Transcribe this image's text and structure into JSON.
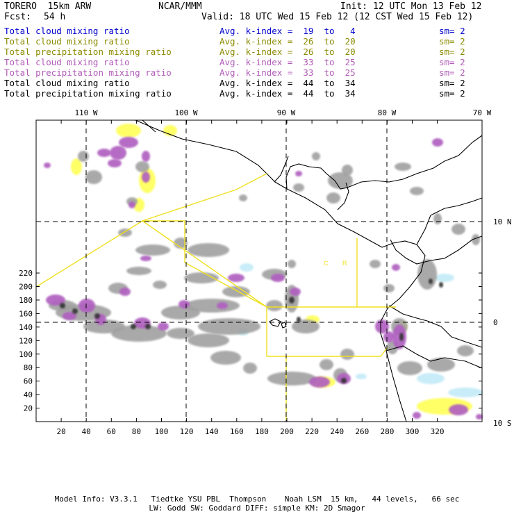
{
  "header": {
    "model": "TORERO  15km ARW",
    "center": "NCAR/MMM",
    "init": "Init: 12 UTC Mon 13 Feb 12",
    "fcst_label": "Fcst:",
    "fcst_value": "54 h",
    "valid": "Valid: 18 UTC Wed 15 Feb 12 (12 CST Wed 15 Feb 12)"
  },
  "legend": [
    {
      "field": "Total cloud mixing ratio",
      "index": "Avg. k-index =  19  to   4",
      "sm": "sm= 2",
      "color": "#0000cc"
    },
    {
      "field": "Total cloud mixing ratio",
      "index": "Avg. k-index =  26  to  20",
      "sm": "sm= 2",
      "color": "#8a8a00"
    },
    {
      "field": "Total precipitation mixing ratio",
      "index": "Avg. k-index =  26  to  20",
      "sm": "sm= 2",
      "color": "#8a8a00"
    },
    {
      "field": "Total cloud mixing ratio",
      "index": "Avg. k-index =  33  to  25",
      "sm": "sm= 2",
      "color": "#b05ab8"
    },
    {
      "field": "Total precipitation mixing ratio",
      "index": "Avg. k-index =  33  to  25",
      "sm": "sm= 2",
      "color": "#b05ab8"
    },
    {
      "field": "Total cloud mixing ratio",
      "index": "Avg. k-index =  44  to  34",
      "sm": "sm= 2",
      "color": "#000000"
    },
    {
      "field": "Total precipitation mixing ratio",
      "index": "Avg. k-index =  44  to  34",
      "sm": "sm= 2",
      "color": "#000000"
    }
  ],
  "map": {
    "top_longitude_labels": [
      "110 W",
      "100 W",
      "90 W",
      "80 W",
      "70 W"
    ],
    "right_latitude_labels": [
      "10 N",
      "0",
      "10 S"
    ],
    "x_grid_labels": [
      "20",
      "40",
      "60",
      "80",
      "100",
      "120",
      "140",
      "160",
      "180",
      "200",
      "220",
      "240",
      "260",
      "280",
      "300",
      "320"
    ],
    "y_grid_labels": [
      "20",
      "40",
      "60",
      "80",
      "100",
      "120",
      "140",
      "160",
      "180",
      "200",
      "220"
    ],
    "colors": {
      "frame": "#000000",
      "cloud_light_blue": "#c8ecf8",
      "cloud_yellow": "#ffff66",
      "cloud_purple": "#b060c0",
      "cloud_gray": "#a0a0a0",
      "domain_box": "#f0e020"
    },
    "annotations": [
      "C",
      "R"
    ]
  },
  "footer": {
    "line1": "Model Info: V3.3.1   Tiedtke YSU PBL  Thompson    Noah LSM  15 km,   44 levels,   66 sec",
    "line2": "LW: Godd SW: Goddard DIFF: simple KM: 2D Smagor"
  }
}
